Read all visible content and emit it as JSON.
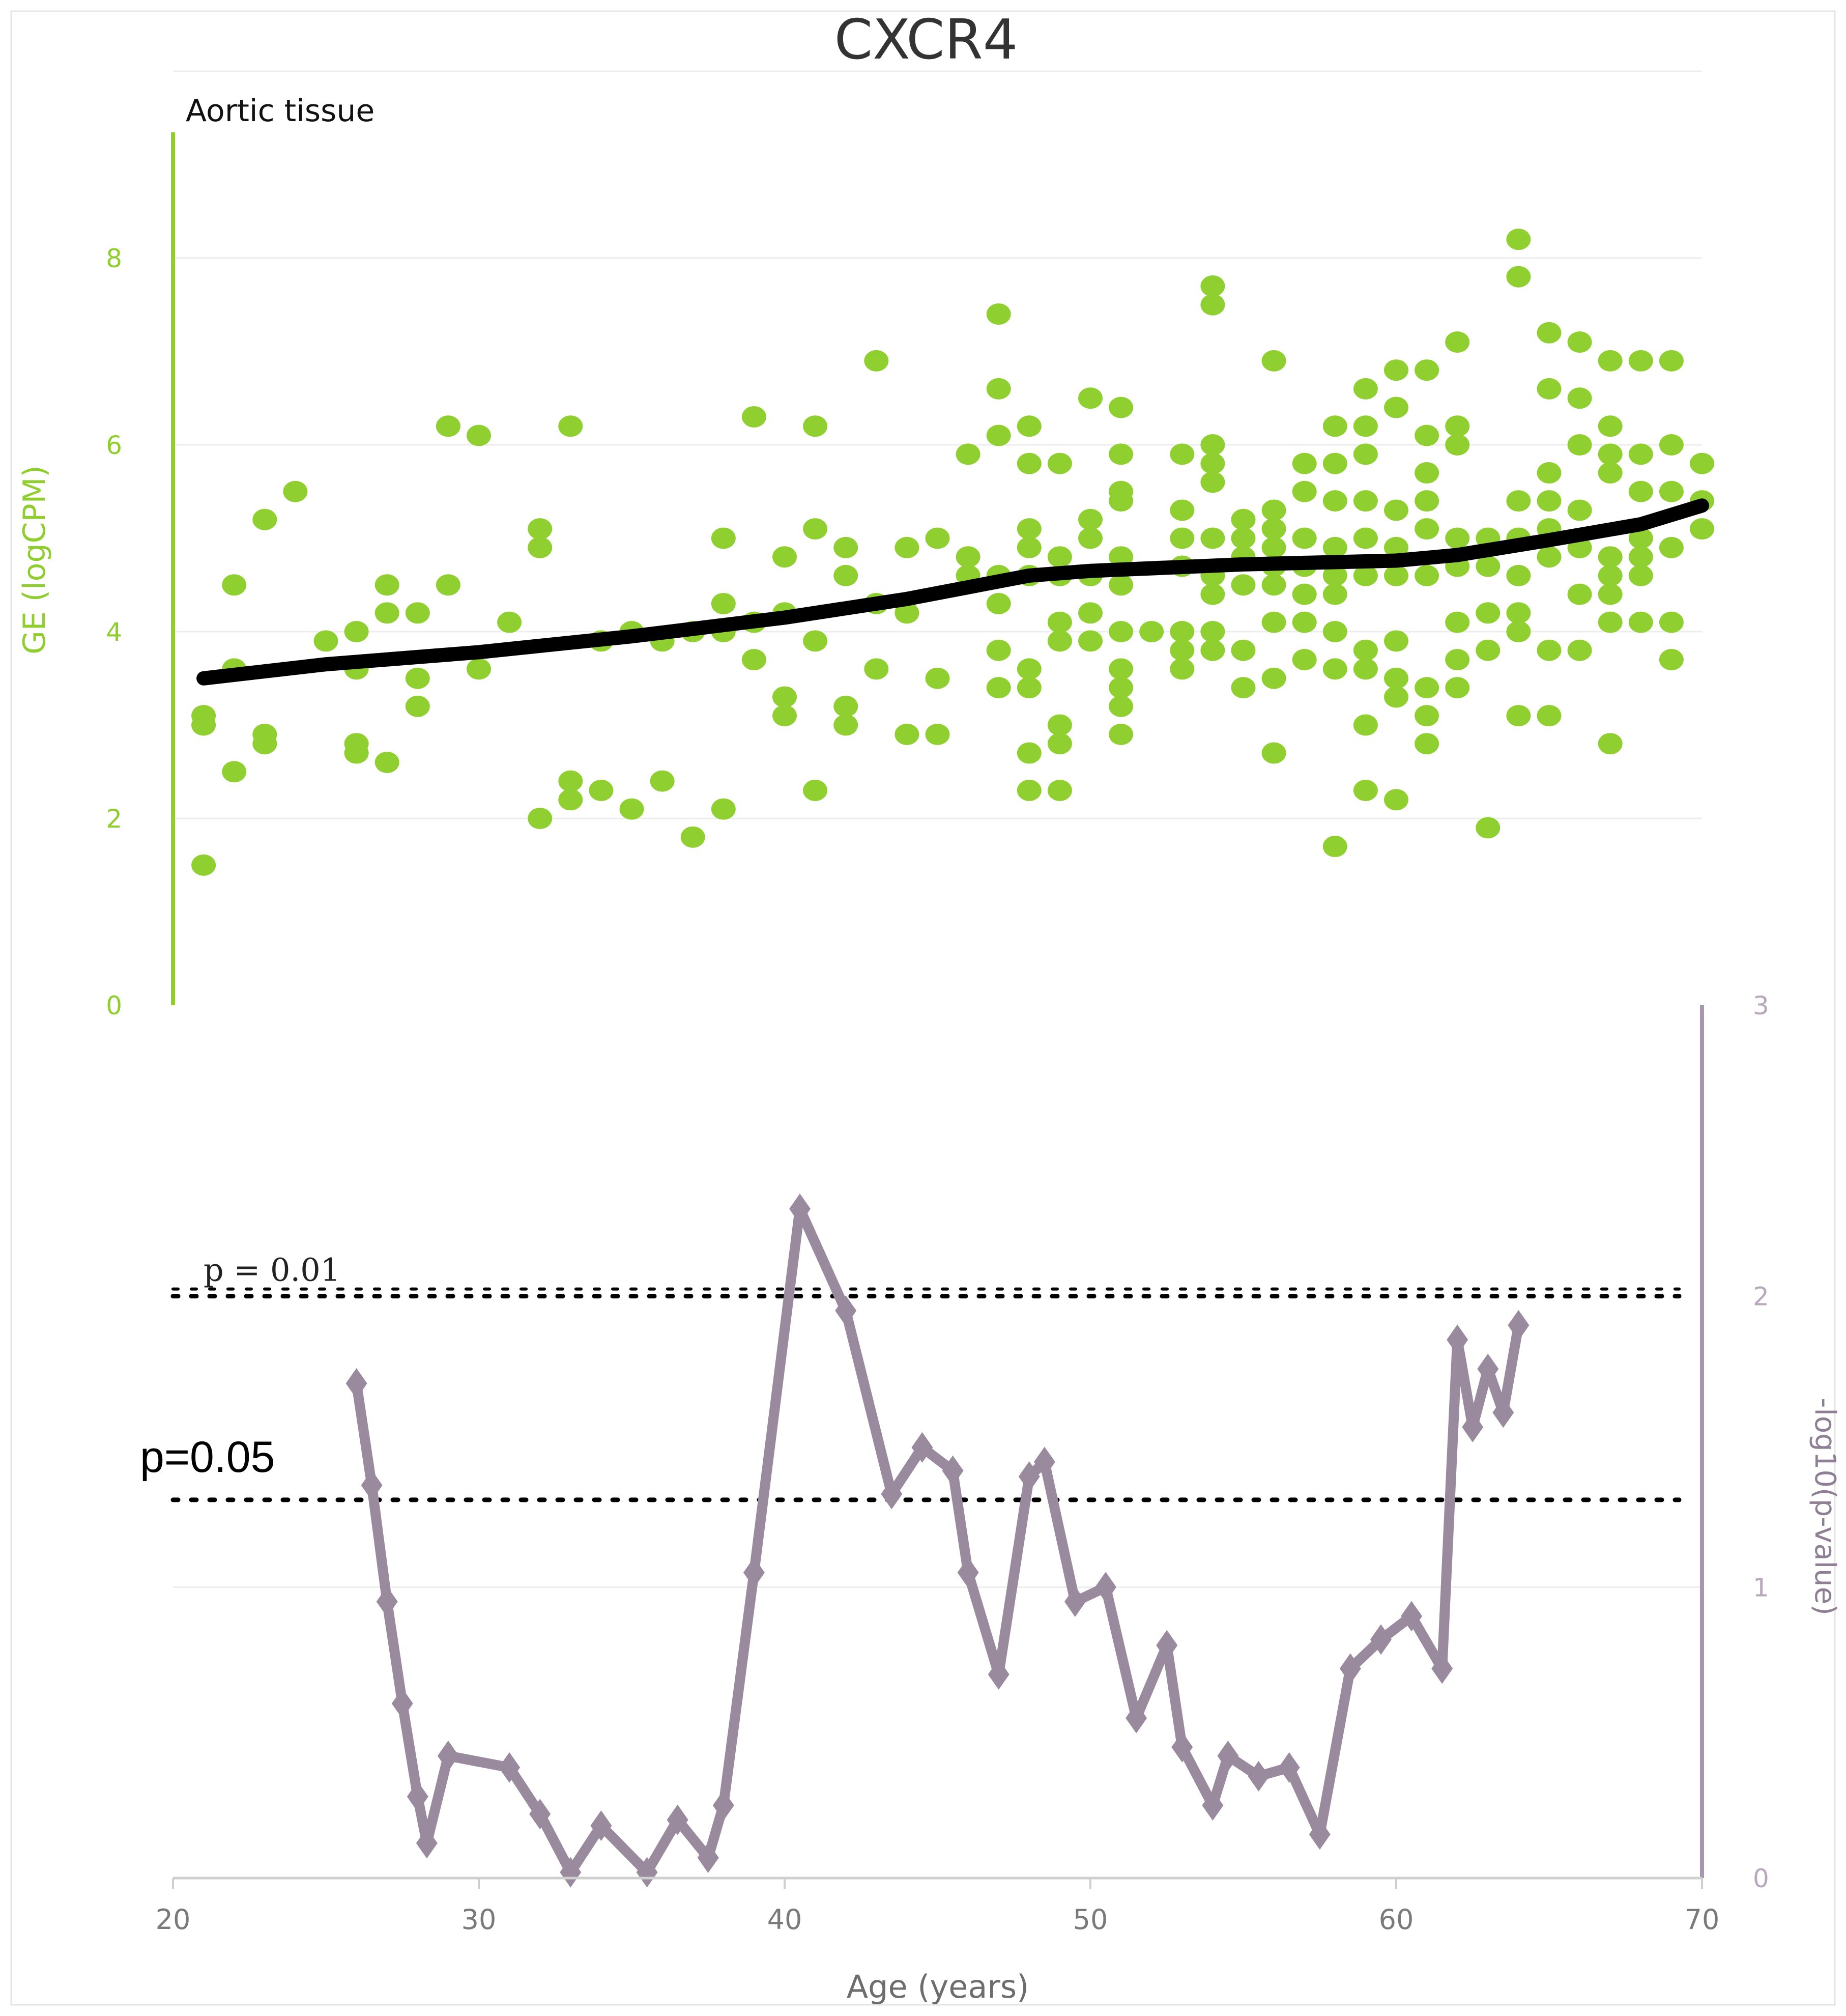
{
  "chart_data": {
    "type": "scatter",
    "title": "CXCR4",
    "subtitle": "Aortic tissue",
    "xlabel": "Age (years)",
    "ylabel_left": "GE (logCPM)",
    "ylabel_right": "-log10(p-value)",
    "xlim": [
      20,
      70
    ],
    "x_ticks": [
      "20",
      "30",
      "40",
      "50",
      "60",
      "70"
    ],
    "ylim_left": [
      0,
      10
    ],
    "y_ticks_left": [
      "0",
      "2",
      "4",
      "6",
      "8"
    ],
    "ylim_right": [
      0,
      3
    ],
    "y_ticks_right": [
      "0",
      "1",
      "2",
      "3"
    ],
    "grid": true,
    "colors": {
      "scatter": "#8fd030",
      "trend": "#000000",
      "pvalue": "#9a8a9e",
      "left_axis": "#8fce2d",
      "right_axis": "#a898ad"
    },
    "series": [
      {
        "type": "scatter",
        "points": [
          [
            21,
            1.5
          ],
          [
            21,
            3.0
          ],
          [
            21,
            3.1
          ],
          [
            22,
            2.5
          ],
          [
            22,
            3.6
          ],
          [
            22,
            4.5
          ],
          [
            23,
            2.8
          ],
          [
            23,
            2.9
          ],
          [
            23,
            5.2
          ],
          [
            24,
            5.5
          ],
          [
            25,
            3.9
          ],
          [
            26,
            2.7
          ],
          [
            26,
            2.8
          ],
          [
            26,
            3.6
          ],
          [
            26,
            4.0
          ],
          [
            27,
            2.6
          ],
          [
            27,
            4.2
          ],
          [
            27,
            4.5
          ],
          [
            28,
            3.2
          ],
          [
            28,
            3.5
          ],
          [
            28,
            4.2
          ],
          [
            29,
            4.5
          ],
          [
            29,
            6.2
          ],
          [
            30,
            3.6
          ],
          [
            30,
            6.1
          ],
          [
            31,
            4.1
          ],
          [
            32,
            2.0
          ],
          [
            32,
            4.9
          ],
          [
            32,
            5.1
          ],
          [
            33,
            2.2
          ],
          [
            33,
            2.4
          ],
          [
            33,
            6.2
          ],
          [
            34,
            2.3
          ],
          [
            34,
            3.9
          ],
          [
            35,
            2.1
          ],
          [
            35,
            4.0
          ],
          [
            36,
            2.4
          ],
          [
            36,
            3.9
          ],
          [
            37,
            1.8
          ],
          [
            37,
            4.0
          ],
          [
            38,
            2.1
          ],
          [
            38,
            4.0
          ],
          [
            38,
            4.3
          ],
          [
            38,
            5.0
          ],
          [
            39,
            3.7
          ],
          [
            39,
            4.1
          ],
          [
            39,
            6.3
          ],
          [
            40,
            3.1
          ],
          [
            40,
            3.3
          ],
          [
            40,
            4.2
          ],
          [
            40,
            4.8
          ],
          [
            41,
            2.3
          ],
          [
            41,
            3.9
          ],
          [
            41,
            5.1
          ],
          [
            41,
            6.2
          ],
          [
            42,
            3.0
          ],
          [
            42,
            3.2
          ],
          [
            42,
            4.6
          ],
          [
            42,
            4.9
          ],
          [
            43,
            3.6
          ],
          [
            43,
            4.3
          ],
          [
            43,
            6.9
          ],
          [
            44,
            2.9
          ],
          [
            44,
            4.2
          ],
          [
            44,
            4.9
          ],
          [
            45,
            2.9
          ],
          [
            45,
            3.5
          ],
          [
            45,
            5.0
          ],
          [
            46,
            4.6
          ],
          [
            46,
            4.8
          ],
          [
            46,
            5.9
          ],
          [
            47,
            3.4
          ],
          [
            47,
            3.8
          ],
          [
            47,
            4.3
          ],
          [
            47,
            4.6
          ],
          [
            47,
            6.1
          ],
          [
            47,
            6.6
          ],
          [
            47,
            7.4
          ],
          [
            48,
            2.3
          ],
          [
            48,
            2.7
          ],
          [
            48,
            3.4
          ],
          [
            48,
            3.6
          ],
          [
            48,
            4.6
          ],
          [
            48,
            4.9
          ],
          [
            48,
            5.1
          ],
          [
            48,
            5.8
          ],
          [
            48,
            6.2
          ],
          [
            49,
            2.3
          ],
          [
            49,
            2.8
          ],
          [
            49,
            3.0
          ],
          [
            49,
            3.9
          ],
          [
            49,
            4.1
          ],
          [
            49,
            4.6
          ],
          [
            49,
            4.8
          ],
          [
            49,
            5.8
          ],
          [
            50,
            3.9
          ],
          [
            50,
            4.2
          ],
          [
            50,
            4.6
          ],
          [
            50,
            5.0
          ],
          [
            50,
            5.2
          ],
          [
            50,
            6.5
          ],
          [
            51,
            2.9
          ],
          [
            51,
            3.2
          ],
          [
            51,
            3.4
          ],
          [
            51,
            3.6
          ],
          [
            51,
            4.0
          ],
          [
            51,
            4.5
          ],
          [
            51,
            4.8
          ],
          [
            51,
            5.4
          ],
          [
            51,
            5.5
          ],
          [
            51,
            5.9
          ],
          [
            51,
            6.4
          ],
          [
            52,
            4.0
          ],
          [
            53,
            3.6
          ],
          [
            53,
            3.8
          ],
          [
            53,
            4.0
          ],
          [
            53,
            4.7
          ],
          [
            53,
            5.0
          ],
          [
            53,
            5.3
          ],
          [
            53,
            5.9
          ],
          [
            54,
            3.8
          ],
          [
            54,
            4.0
          ],
          [
            54,
            4.4
          ],
          [
            54,
            4.6
          ],
          [
            54,
            5.0
          ],
          [
            54,
            5.6
          ],
          [
            54,
            5.8
          ],
          [
            54,
            6.0
          ],
          [
            54,
            7.5
          ],
          [
            54,
            7.7
          ],
          [
            55,
            3.4
          ],
          [
            55,
            3.8
          ],
          [
            55,
            4.5
          ],
          [
            55,
            4.8
          ],
          [
            55,
            5.0
          ],
          [
            55,
            5.2
          ],
          [
            56,
            2.7
          ],
          [
            56,
            3.5
          ],
          [
            56,
            4.1
          ],
          [
            56,
            4.5
          ],
          [
            56,
            4.7
          ],
          [
            56,
            4.9
          ],
          [
            56,
            5.1
          ],
          [
            56,
            5.3
          ],
          [
            56,
            6.9
          ],
          [
            57,
            3.7
          ],
          [
            57,
            4.1
          ],
          [
            57,
            4.4
          ],
          [
            57,
            4.7
          ],
          [
            57,
            5.0
          ],
          [
            57,
            5.5
          ],
          [
            57,
            5.8
          ],
          [
            58,
            1.7
          ],
          [
            58,
            3.6
          ],
          [
            58,
            4.0
          ],
          [
            58,
            4.4
          ],
          [
            58,
            4.6
          ],
          [
            58,
            4.9
          ],
          [
            58,
            5.4
          ],
          [
            58,
            5.8
          ],
          [
            58,
            6.2
          ],
          [
            59,
            2.3
          ],
          [
            59,
            3.0
          ],
          [
            59,
            3.6
          ],
          [
            59,
            3.8
          ],
          [
            59,
            4.6
          ],
          [
            59,
            5.0
          ],
          [
            59,
            5.4
          ],
          [
            59,
            5.9
          ],
          [
            59,
            6.2
          ],
          [
            59,
            6.6
          ],
          [
            60,
            2.2
          ],
          [
            60,
            3.3
          ],
          [
            60,
            3.5
          ],
          [
            60,
            3.9
          ],
          [
            60,
            4.6
          ],
          [
            60,
            4.9
          ],
          [
            60,
            5.3
          ],
          [
            60,
            6.4
          ],
          [
            60,
            6.8
          ],
          [
            61,
            2.8
          ],
          [
            61,
            3.1
          ],
          [
            61,
            3.4
          ],
          [
            61,
            4.6
          ],
          [
            61,
            5.1
          ],
          [
            61,
            5.4
          ],
          [
            61,
            5.7
          ],
          [
            61,
            6.1
          ],
          [
            61,
            6.8
          ],
          [
            62,
            3.4
          ],
          [
            62,
            3.7
          ],
          [
            62,
            4.1
          ],
          [
            62,
            4.7
          ],
          [
            62,
            5.0
          ],
          [
            62,
            6.0
          ],
          [
            62,
            6.2
          ],
          [
            62,
            7.1
          ],
          [
            63,
            1.9
          ],
          [
            63,
            3.8
          ],
          [
            63,
            4.2
          ],
          [
            63,
            4.7
          ],
          [
            63,
            5.0
          ],
          [
            64,
            3.1
          ],
          [
            64,
            4.0
          ],
          [
            64,
            4.2
          ],
          [
            64,
            4.6
          ],
          [
            64,
            5.0
          ],
          [
            64,
            5.4
          ],
          [
            64,
            7.8
          ],
          [
            64,
            8.2
          ],
          [
            65,
            3.1
          ],
          [
            65,
            3.8
          ],
          [
            65,
            4.8
          ],
          [
            65,
            5.1
          ],
          [
            65,
            5.4
          ],
          [
            65,
            5.7
          ],
          [
            65,
            6.6
          ],
          [
            65,
            7.2
          ],
          [
            66,
            3.8
          ],
          [
            66,
            4.4
          ],
          [
            66,
            4.9
          ],
          [
            66,
            5.3
          ],
          [
            66,
            6.0
          ],
          [
            66,
            6.5
          ],
          [
            66,
            7.1
          ],
          [
            67,
            2.8
          ],
          [
            67,
            4.1
          ],
          [
            67,
            4.4
          ],
          [
            67,
            4.6
          ],
          [
            67,
            4.8
          ],
          [
            67,
            5.7
          ],
          [
            67,
            5.9
          ],
          [
            67,
            6.2
          ],
          [
            67,
            6.9
          ],
          [
            68,
            4.1
          ],
          [
            68,
            4.6
          ],
          [
            68,
            4.8
          ],
          [
            68,
            5.0
          ],
          [
            68,
            5.5
          ],
          [
            68,
            5.9
          ],
          [
            68,
            6.9
          ],
          [
            69,
            3.7
          ],
          [
            69,
            4.1
          ],
          [
            69,
            4.9
          ],
          [
            69,
            5.5
          ],
          [
            69,
            6.0
          ],
          [
            69,
            6.9
          ],
          [
            70,
            5.1
          ],
          [
            70,
            5.4
          ],
          [
            70,
            5.8
          ]
        ]
      },
      {
        "type": "line",
        "role": "trend",
        "points": [
          [
            21,
            3.5
          ],
          [
            25,
            3.65
          ],
          [
            30,
            3.78
          ],
          [
            35,
            3.95
          ],
          [
            40,
            4.15
          ],
          [
            44,
            4.35
          ],
          [
            48,
            4.6
          ],
          [
            50,
            4.65
          ],
          [
            55,
            4.72
          ],
          [
            60,
            4.76
          ],
          [
            62,
            4.82
          ],
          [
            65,
            4.98
          ],
          [
            68,
            5.15
          ],
          [
            70,
            5.35
          ]
        ]
      },
      {
        "type": "line",
        "role": "pvalue",
        "axis": "right",
        "points": [
          [
            26,
            1.7
          ],
          [
            26.5,
            1.35
          ],
          [
            27,
            0.95
          ],
          [
            27.5,
            0.6
          ],
          [
            28,
            0.28
          ],
          [
            28.3,
            0.12
          ],
          [
            29,
            0.42
          ],
          [
            31,
            0.38
          ],
          [
            32,
            0.22
          ],
          [
            33,
            0.02
          ],
          [
            34,
            0.18
          ],
          [
            35.5,
            0.02
          ],
          [
            36.5,
            0.2
          ],
          [
            37.5,
            0.07
          ],
          [
            38,
            0.25
          ],
          [
            39,
            1.05
          ],
          [
            40.5,
            2.3
          ],
          [
            42,
            1.95
          ],
          [
            43.5,
            1.32
          ],
          [
            44.5,
            1.48
          ],
          [
            45.5,
            1.4
          ],
          [
            46,
            1.05
          ],
          [
            47,
            0.7
          ],
          [
            48,
            1.38
          ],
          [
            48.5,
            1.43
          ],
          [
            49.5,
            0.95
          ],
          [
            50.5,
            1.0
          ],
          [
            51.5,
            0.55
          ],
          [
            52.5,
            0.8
          ],
          [
            53,
            0.45
          ],
          [
            54,
            0.25
          ],
          [
            54.5,
            0.42
          ],
          [
            55.5,
            0.35
          ],
          [
            56.5,
            0.38
          ],
          [
            57.5,
            0.15
          ],
          [
            58.5,
            0.72
          ],
          [
            59.5,
            0.82
          ],
          [
            60.5,
            0.9
          ],
          [
            61.5,
            0.72
          ],
          [
            62,
            1.85
          ],
          [
            62.5,
            1.55
          ],
          [
            63,
            1.75
          ],
          [
            63.5,
            1.6
          ],
          [
            64,
            1.9
          ]
        ]
      }
    ],
    "reference_lines": [
      {
        "label": "p = 0.01",
        "value": 2.0
      },
      {
        "label": "p=0.05",
        "value": 1.3
      }
    ]
  }
}
